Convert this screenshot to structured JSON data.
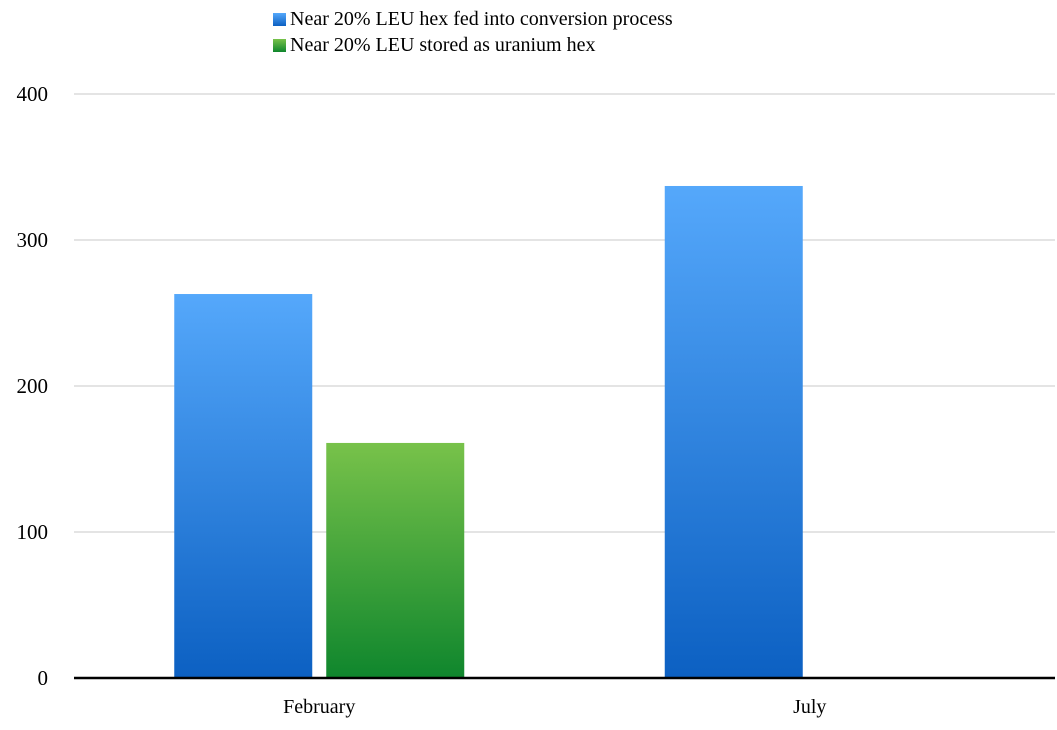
{
  "chart_data": {
    "type": "bar",
    "categories": [
      "February",
      "July"
    ],
    "series": [
      {
        "name": "Near 20% LEU hex fed into conversion process",
        "values": [
          263,
          337
        ],
        "color_top": "#55a8fb",
        "color_bottom": "#0c60c2"
      },
      {
        "name": "Near 20% LEU stored as uranium hex",
        "values": [
          161,
          null
        ],
        "color_top": "#78c24a",
        "color_bottom": "#0f862d"
      }
    ],
    "title": "",
    "xlabel": "",
    "ylabel": "",
    "ylim": [
      0,
      400
    ],
    "yticks": [
      0,
      100,
      200,
      300,
      400
    ],
    "grid": true,
    "legend_position": "top"
  }
}
